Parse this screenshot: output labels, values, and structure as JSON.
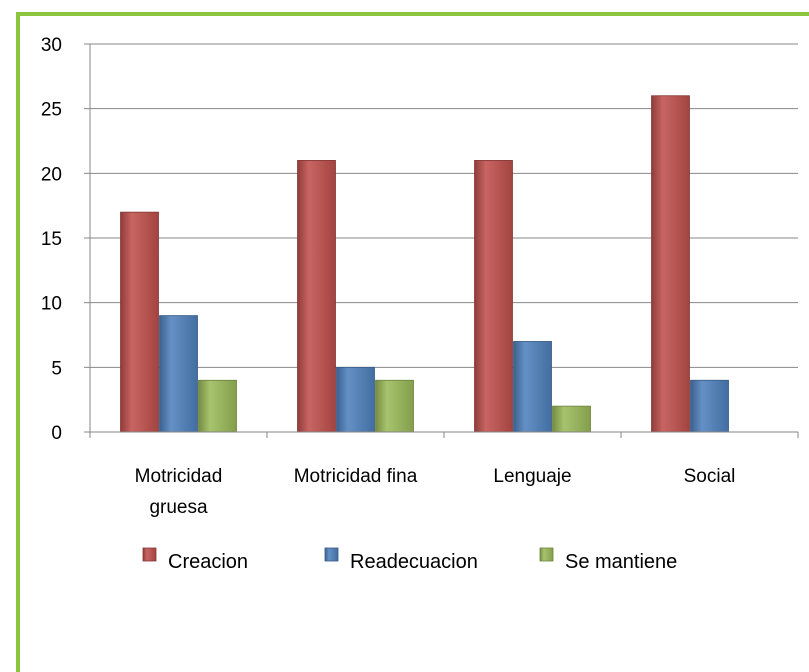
{
  "chart_data": {
    "type": "bar",
    "categories": [
      [
        "Motricidad",
        "gruesa"
      ],
      [
        "Motricidad fina"
      ],
      [
        "Lenguaje"
      ],
      [
        "Social"
      ]
    ],
    "series": [
      {
        "name": "Creacion",
        "values": [
          17,
          21,
          21,
          26
        ],
        "color": "#c0504d"
      },
      {
        "name": "Readecuacion",
        "values": [
          9,
          5,
          7,
          4
        ],
        "color": "#4f81bd"
      },
      {
        "name": "Se mantiene",
        "values": [
          4,
          4,
          2,
          0
        ],
        "color": "#9bbb59"
      }
    ],
    "ylim": [
      0,
      30
    ],
    "yticks": [
      0,
      5,
      10,
      15,
      20,
      25,
      30
    ],
    "grid": true,
    "legend_position": "bottom",
    "frame_color": "#8cc63f"
  }
}
